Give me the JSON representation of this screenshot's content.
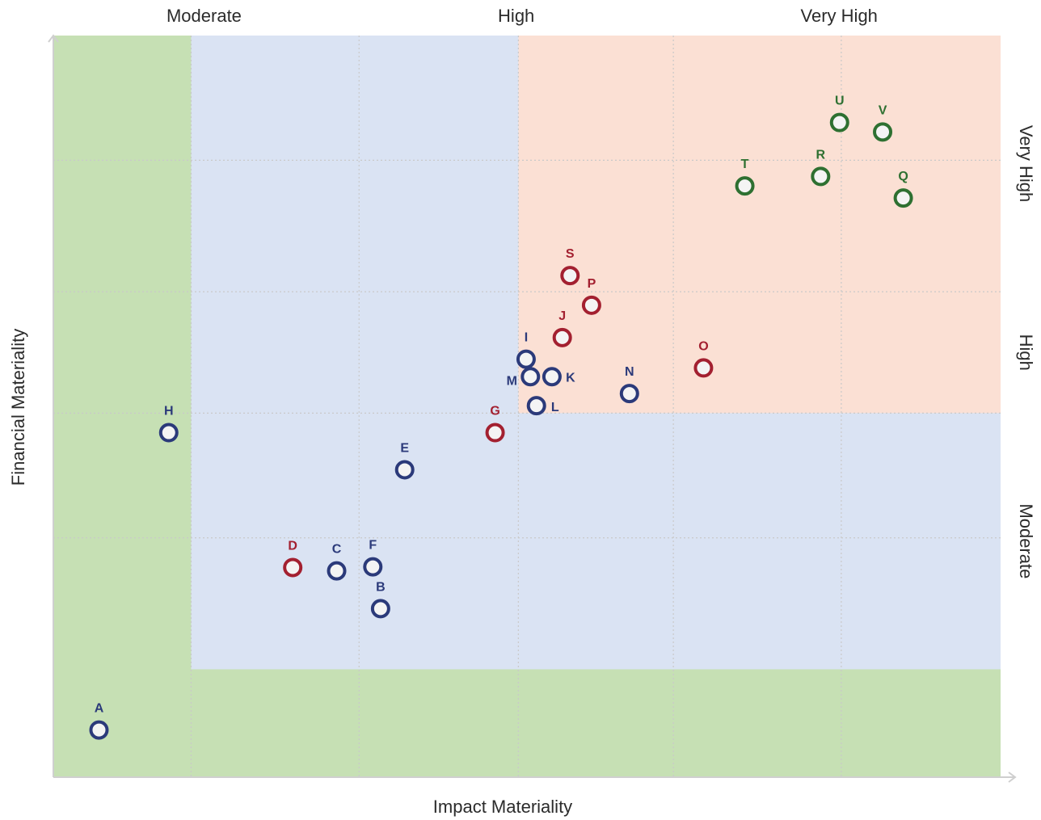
{
  "chart_data": {
    "type": "scatter",
    "title": "",
    "xlabel": "Impact Materiality",
    "ylabel": "Financial Materiality",
    "xlim": [
      0,
      11
    ],
    "ylim": [
      0,
      11
    ],
    "grid": true,
    "x_bands": [
      {
        "label": "Moderate",
        "from": 0,
        "to": 3.5
      },
      {
        "label": "High",
        "from": 3.5,
        "to": 7.25
      },
      {
        "label": "Very High",
        "from": 7.25,
        "to": 11
      }
    ],
    "y_bands": [
      {
        "label": "Moderate",
        "from": 1.6,
        "to": 5.4
      },
      {
        "label": "High",
        "from": 5.4,
        "to": 7.2
      },
      {
        "label": "Very High",
        "from": 7.2,
        "to": 11
      }
    ],
    "regions": [
      {
        "name": "low",
        "color": "#c6e0b4",
        "x": [
          0,
          11
        ],
        "y": [
          0,
          11
        ]
      },
      {
        "name": "medium",
        "color": "#dae3f3",
        "x": [
          1.6,
          11
        ],
        "y": [
          1.6,
          11
        ]
      },
      {
        "name": "high",
        "color": "#fbe0d4",
        "x": [
          5.4,
          11
        ],
        "y": [
          5.4,
          11
        ]
      }
    ],
    "gridlines_x": [
      1.6,
      3.55,
      5.4,
      7.2,
      9.15
    ],
    "gridlines_y": [
      3.55,
      5.4,
      7.2,
      9.15
    ],
    "colors": {
      "navy": "#2b3a7a",
      "red": "#a32030",
      "green": "#2e7031"
    },
    "points": [
      {
        "label": "A",
        "x": 0.53,
        "y": 0.7,
        "color": "navy"
      },
      {
        "label": "B",
        "x": 3.8,
        "y": 2.5,
        "color": "navy"
      },
      {
        "label": "C",
        "x": 3.29,
        "y": 3.06,
        "color": "navy"
      },
      {
        "label": "D",
        "x": 2.78,
        "y": 3.11,
        "color": "red"
      },
      {
        "label": "E",
        "x": 4.08,
        "y": 4.56,
        "color": "navy"
      },
      {
        "label": "F",
        "x": 3.71,
        "y": 3.12,
        "color": "navy"
      },
      {
        "label": "G",
        "x": 5.13,
        "y": 5.11,
        "color": "red"
      },
      {
        "label": "H",
        "x": 1.34,
        "y": 5.11,
        "color": "navy"
      },
      {
        "label": "I",
        "x": 5.49,
        "y": 6.2,
        "color": "navy"
      },
      {
        "label": "J",
        "x": 5.91,
        "y": 6.52,
        "color": "red"
      },
      {
        "label": "K",
        "x": 5.79,
        "y": 5.94,
        "color": "navy"
      },
      {
        "label": "L",
        "x": 5.61,
        "y": 5.51,
        "color": "navy"
      },
      {
        "label": "M",
        "x": 5.54,
        "y": 5.94,
        "color": "navy"
      },
      {
        "label": "N",
        "x": 6.69,
        "y": 5.69,
        "color": "navy"
      },
      {
        "label": "O",
        "x": 7.55,
        "y": 6.07,
        "color": "red"
      },
      {
        "label": "P",
        "x": 6.25,
        "y": 7.0,
        "color": "red"
      },
      {
        "label": "Q",
        "x": 9.87,
        "y": 8.59,
        "color": "green"
      },
      {
        "label": "R",
        "x": 8.91,
        "y": 8.91,
        "color": "green"
      },
      {
        "label": "S",
        "x": 6.0,
        "y": 7.44,
        "color": "red"
      },
      {
        "label": "T",
        "x": 8.03,
        "y": 8.77,
        "color": "green"
      },
      {
        "label": "U",
        "x": 9.13,
        "y": 9.71,
        "color": "green"
      },
      {
        "label": "V",
        "x": 9.63,
        "y": 9.57,
        "color": "green"
      }
    ]
  }
}
